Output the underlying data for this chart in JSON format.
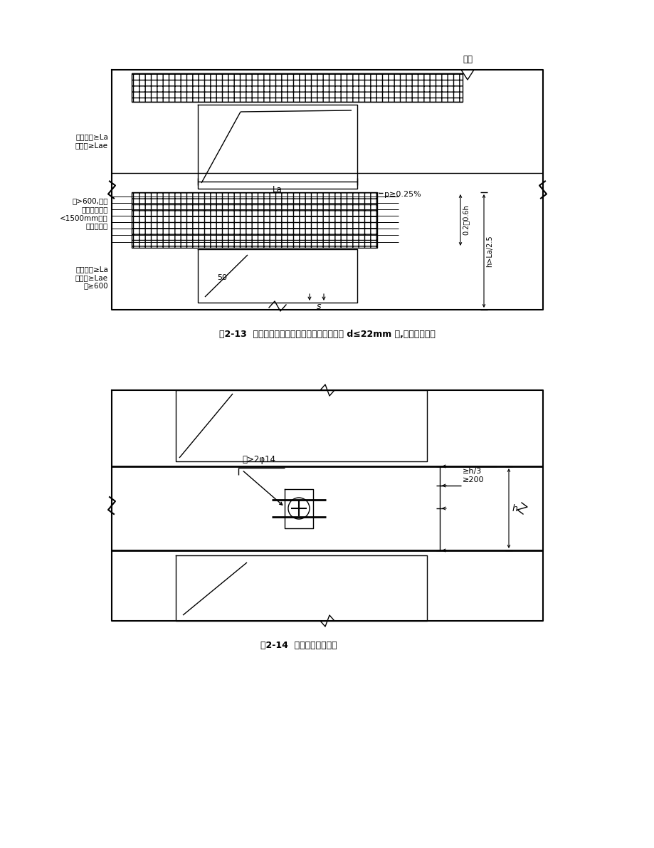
{
  "bg_color": "#ffffff",
  "fig_width": 9.2,
  "fig_height": 11.91,
  "dpi": 100,
  "caption1": "图2-13  一、二级抗震等级非加强部位纵向钢筋 d≤22mm 时,钢筋搭接构造",
  "caption2": "图2-14  剪力墙连梁的配筋",
  "label_toplayer": "顶层",
  "label_noneq_top": "非抗震时≥La\n抗震时≥Lae",
  "label_La": "La",
  "label_condition": "且>600,此范\n围内箍筋间距\n<1500mm箍筋\n直径同跨中",
  "label_p": "p≥0.25%",
  "label_0206h": "0.2～0.6h",
  "label_hLa25": "h>La/2.5",
  "label_noneq_bot": "非抗震时≥La\n抗震时≥Lae\n且≥600",
  "label_50": "50",
  "label_s": "s",
  "label_fig14_bars": "各>2φ14",
  "label_fig14_hn3": "≥h/3\n≥200",
  "label_fig14_h": "h"
}
